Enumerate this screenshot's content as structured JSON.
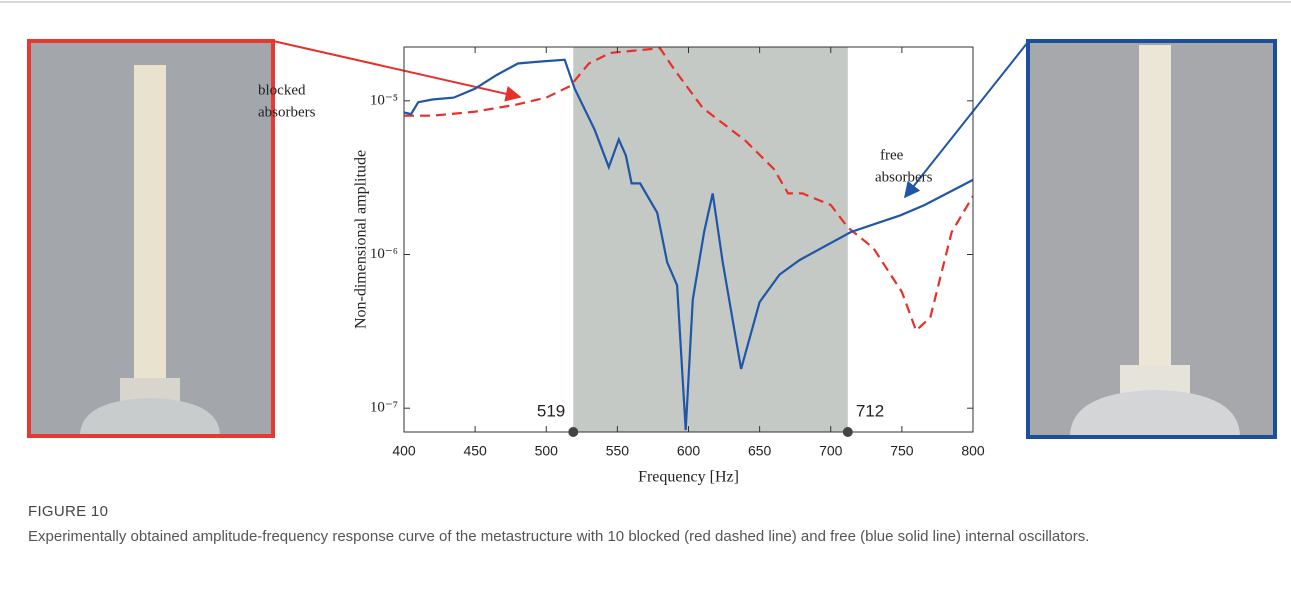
{
  "chart_data": {
    "type": "line",
    "x_label": "Frequency [Hz]",
    "y_label": "Non-dimensional amplitude",
    "log_y": true,
    "xlim": [
      400,
      800
    ],
    "xticks": [
      400,
      450,
      500,
      550,
      600,
      650,
      700,
      750,
      800
    ],
    "ylim": [
      7e-08,
      2.24e-05
    ],
    "yticks": [
      {
        "value": 1e-07,
        "label": "10⁻⁷"
      },
      {
        "value": 1e-06,
        "label": "10⁻⁶"
      },
      {
        "value": 1e-05,
        "label": "10⁻⁵"
      }
    ],
    "shaded_region": [
      519,
      712
    ],
    "shade_color": "#c4c9c6",
    "annotations": [
      {
        "text": [
          "blocked",
          "absorbers"
        ]
      },
      {
        "text": [
          "free",
          "absorbers"
        ]
      }
    ],
    "series": [
      {
        "name": "blocked",
        "color": "#e8302a",
        "dash": true,
        "x": [
          400,
          420,
          450,
          480,
          500,
          517,
          530,
          545,
          580,
          590,
          610,
          640,
          660,
          670,
          680,
          700,
          712,
          730,
          750,
          760,
          770,
          785,
          800
        ],
        "values": [
          8e-06,
          8e-06,
          8.5e-06,
          9.5e-06,
          1.05e-05,
          1.25e-05,
          1.75e-05,
          2.05e-05,
          2.2e-05,
          1.6e-05,
          9e-06,
          5.5e-06,
          3.6e-06,
          2.5e-06,
          2.5e-06,
          2.1e-06,
          1.5e-06,
          1.1e-06,
          5.7e-07,
          3.2e-07,
          3.9e-07,
          1.4e-06,
          2.4e-06
        ]
      },
      {
        "name": "free",
        "color": "#1f56a8",
        "dash": false,
        "x": [
          400,
          405,
          410,
          420,
          435,
          450,
          465,
          480,
          495,
          513,
          520,
          534,
          544,
          551,
          556,
          560,
          566,
          578,
          585,
          592,
          598,
          603,
          611,
          617,
          624,
          637,
          650,
          664,
          678,
          714,
          749,
          766,
          800
        ],
        "values": [
          8.4e-06,
          8.2e-06,
          9.8e-06,
          1.02e-05,
          1.05e-05,
          1.2e-05,
          1.47e-05,
          1.75e-05,
          1.8e-05,
          1.85e-05,
          1.2e-05,
          6.5e-06,
          3.7e-06,
          5.6e-06,
          4.4e-06,
          2.9e-06,
          2.9e-06,
          1.87e-06,
          8.9e-07,
          6.3e-07,
          7.2e-08,
          5.1e-07,
          1.4e-06,
          2.5e-06,
          9e-07,
          1.8e-07,
          4.9e-07,
          7.4e-07,
          9.2e-07,
          1.4e-06,
          1.8e-06,
          2.1e-06,
          3.06e-06
        ]
      }
    ]
  },
  "figure": {
    "label": "FIGURE 10",
    "caption": "Experimentally obtained amplitude-frequency response curve of the metastructure with 10 blocked (red dashed line) and free (blue solid line) internal oscillators."
  }
}
